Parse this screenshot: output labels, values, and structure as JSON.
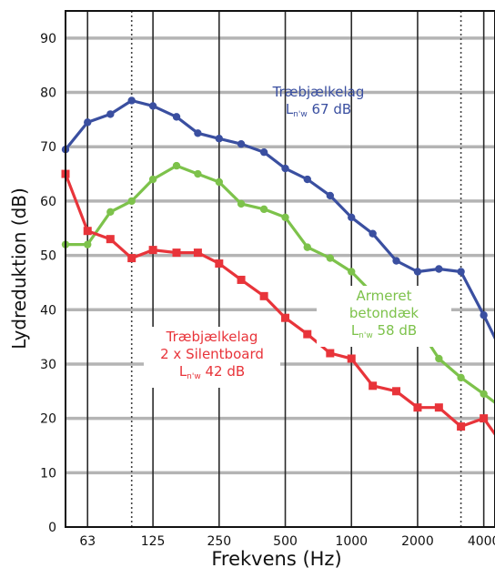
{
  "chart_data": {
    "type": "line",
    "title": "",
    "xlabel": "Frekvens (Hz)",
    "ylabel": "Lydreduktion (dB)",
    "xscale": "log",
    "xlim": [
      50,
      4500
    ],
    "ylim": [
      0,
      95
    ],
    "x_ticks": [
      63,
      125,
      250,
      500,
      1000,
      2000,
      4000
    ],
    "x_tick_labels": [
      "63",
      "125",
      "250",
      "500",
      "1000",
      "2000",
      "4000"
    ],
    "y_ticks": [
      0,
      10,
      20,
      30,
      40,
      50,
      60,
      70,
      80,
      90
    ],
    "y_tick_labels": [
      "0",
      "10",
      "20",
      "30",
      "40",
      "50",
      "60",
      "70",
      "80",
      "90"
    ],
    "dotted_verticals": [
      100,
      3150
    ],
    "grid": true,
    "x": [
      50,
      63,
      80,
      100,
      125,
      160,
      200,
      250,
      315,
      400,
      500,
      630,
      800,
      1000,
      1250,
      1600,
      2000,
      2500,
      3150,
      4000,
      5000
    ],
    "series": [
      {
        "name": "Træbjælkelag",
        "color": "#3a4fa0",
        "values": [
          69.5,
          74.5,
          76,
          78.5,
          77.5,
          75.5,
          72.5,
          71.5,
          70.5,
          69,
          66,
          64,
          61,
          57,
          54,
          49,
          47,
          47.5,
          47,
          39,
          31
        ]
      },
      {
        "name": "Armeret betondæk",
        "color": "#7dc24b",
        "values": [
          52,
          52,
          58,
          60,
          64,
          66.5,
          65,
          63.5,
          59.5,
          58.5,
          57,
          51.5,
          49.5,
          47,
          43,
          41,
          37,
          31,
          27.5,
          24.5,
          21.5
        ]
      },
      {
        "name": "Træbjælkelag 2 x Silentboard",
        "color": "#e8343a",
        "values": [
          65,
          54.5,
          53,
          49.5,
          51,
          50.5,
          50.5,
          48.5,
          45.5,
          42.5,
          38.5,
          35.5,
          32,
          31,
          26,
          25,
          22,
          22,
          18.5,
          20,
          14.5
        ]
      }
    ],
    "annotations": [
      {
        "line1": "Træbjælkelag",
        "rating_main": "L",
        "rating_sub": "n'w",
        "rating_value": "67 dB",
        "color": "#3a4fa0"
      },
      {
        "line1": "Armeret betondæk",
        "rating_main": "L",
        "rating_sub": "n'w",
        "rating_value": "58 dB",
        "color": "#7dc24b"
      },
      {
        "line1": "Træbjælkelag",
        "line2": "2 x Silentboard",
        "rating_main": "L",
        "rating_sub": "n'w",
        "rating_value": "42 dB",
        "color": "#e8343a"
      }
    ]
  }
}
